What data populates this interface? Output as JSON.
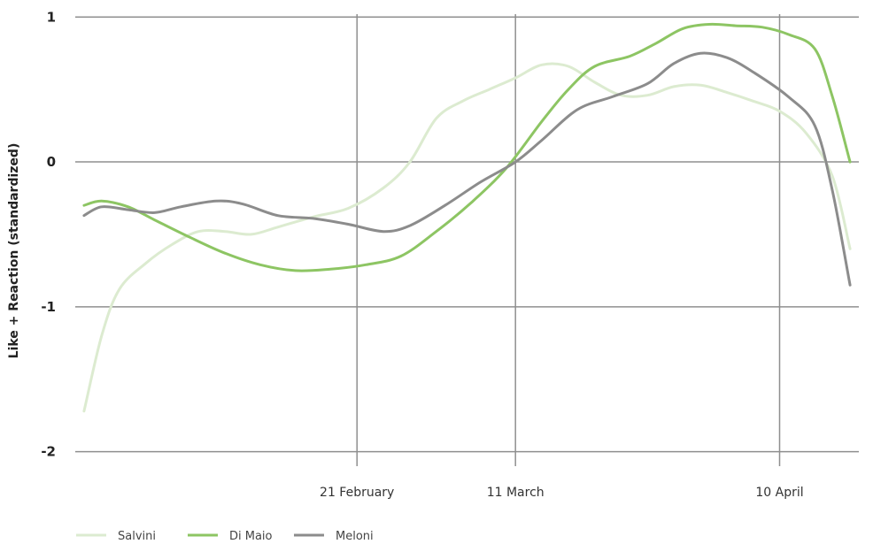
{
  "chart_data": {
    "type": "line",
    "title": "",
    "xlabel": "",
    "ylabel": "Like + Reaction (standardized)",
    "x_ticks": [
      {
        "label": "21 February",
        "day": 51
      },
      {
        "label": "11 March",
        "day": 69
      },
      {
        "label": "10 April",
        "day": 99
      }
    ],
    "y_ticks": [
      1,
      0,
      -1,
      -2
    ],
    "xlim": [
      19,
      108
    ],
    "ylim": [
      -2.1,
      1.02
    ],
    "grid": true,
    "legend_position": "bottom-left",
    "series": [
      {
        "name": "Salvini",
        "color": "#dcebd0",
        "points": [
          [
            20,
            -1.72
          ],
          [
            22,
            -1.2
          ],
          [
            24,
            -0.88
          ],
          [
            27,
            -0.7
          ],
          [
            30,
            -0.57
          ],
          [
            33,
            -0.48
          ],
          [
            36,
            -0.48
          ],
          [
            39,
            -0.5
          ],
          [
            42,
            -0.45
          ],
          [
            46,
            -0.38
          ],
          [
            50,
            -0.32
          ],
          [
            54,
            -0.18
          ],
          [
            57,
            0.0
          ],
          [
            60,
            0.3
          ],
          [
            63,
            0.42
          ],
          [
            66,
            0.5
          ],
          [
            69,
            0.58
          ],
          [
            72,
            0.67
          ],
          [
            75,
            0.66
          ],
          [
            78,
            0.55
          ],
          [
            81,
            0.46
          ],
          [
            84,
            0.46
          ],
          [
            87,
            0.52
          ],
          [
            90,
            0.53
          ],
          [
            93,
            0.48
          ],
          [
            96,
            0.42
          ],
          [
            99,
            0.35
          ],
          [
            102,
            0.2
          ],
          [
            105,
            -0.1
          ],
          [
            107,
            -0.6
          ]
        ]
      },
      {
        "name": "Di Maio",
        "color": "#8dc563",
        "points": [
          [
            20,
            -0.3
          ],
          [
            22,
            -0.27
          ],
          [
            25,
            -0.31
          ],
          [
            28,
            -0.4
          ],
          [
            32,
            -0.52
          ],
          [
            36,
            -0.63
          ],
          [
            40,
            -0.71
          ],
          [
            44,
            -0.75
          ],
          [
            48,
            -0.74
          ],
          [
            52,
            -0.71
          ],
          [
            56,
            -0.65
          ],
          [
            60,
            -0.48
          ],
          [
            64,
            -0.28
          ],
          [
            68,
            -0.04
          ],
          [
            72,
            0.28
          ],
          [
            75,
            0.5
          ],
          [
            78,
            0.66
          ],
          [
            82,
            0.73
          ],
          [
            85,
            0.82
          ],
          [
            88,
            0.92
          ],
          [
            91,
            0.95
          ],
          [
            94,
            0.94
          ],
          [
            97,
            0.93
          ],
          [
            100,
            0.88
          ],
          [
            103,
            0.78
          ],
          [
            105,
            0.45
          ],
          [
            107,
            0.0
          ]
        ]
      },
      {
        "name": "Meloni",
        "color": "#8c8c8c",
        "points": [
          [
            20,
            -0.37
          ],
          [
            22,
            -0.31
          ],
          [
            25,
            -0.33
          ],
          [
            28,
            -0.35
          ],
          [
            31,
            -0.31
          ],
          [
            35,
            -0.27
          ],
          [
            38,
            -0.29
          ],
          [
            42,
            -0.37
          ],
          [
            46,
            -0.39
          ],
          [
            50,
            -0.43
          ],
          [
            54,
            -0.48
          ],
          [
            57,
            -0.44
          ],
          [
            61,
            -0.3
          ],
          [
            65,
            -0.14
          ],
          [
            69,
            0.0
          ],
          [
            72,
            0.15
          ],
          [
            76,
            0.36
          ],
          [
            80,
            0.45
          ],
          [
            84,
            0.54
          ],
          [
            87,
            0.68
          ],
          [
            90,
            0.75
          ],
          [
            93,
            0.72
          ],
          [
            96,
            0.62
          ],
          [
            100,
            0.45
          ],
          [
            103,
            0.25
          ],
          [
            105,
            -0.2
          ],
          [
            107,
            -0.85
          ]
        ]
      }
    ]
  }
}
